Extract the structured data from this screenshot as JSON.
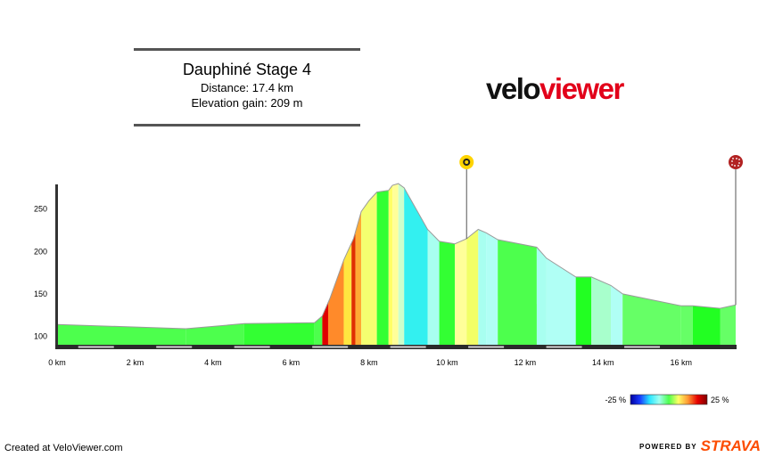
{
  "header": {
    "title": "Dauphiné Stage 4",
    "distance": "Distance: 17.4 km",
    "elevation_gain": "Elevation gain: 209 m"
  },
  "brand": {
    "part1": "velo",
    "part2": "viewer",
    "color_dark": "#111111",
    "color_red": "#e2001a"
  },
  "footer": {
    "created": "Created at VeloViewer.com",
    "powered": "POWERED BY",
    "strava": "STRAVA"
  },
  "legend": {
    "min_label": "-25 %",
    "max_label": "25 %"
  },
  "chart_data": {
    "type": "area",
    "title": "",
    "xlabel": "",
    "ylabel": "",
    "xlim": [
      0,
      17.6
    ],
    "ylim": [
      88,
      278
    ],
    "x_ticks": [
      0,
      2,
      4,
      6,
      8,
      10,
      12,
      14,
      16
    ],
    "x_tick_labels": [
      "0 km",
      "2 km",
      "4 km",
      "6 km",
      "8 km",
      "10 km",
      "12 km",
      "14 km",
      "16 km"
    ],
    "y_ticks": [
      100,
      150,
      200,
      250
    ],
    "grid": false,
    "gradient_color_scale": [
      "#0000a0",
      "#1a3cff",
      "#29e6ff",
      "#a0fff0",
      "#4dff4d",
      "#ffff66",
      "#ff9933",
      "#e60000",
      "#800000"
    ],
    "markers": [
      {
        "name": "intermediate-sprint",
        "x": 10.5,
        "color": "#ffd400"
      },
      {
        "name": "finish",
        "x": 17.4,
        "color": "#b22222"
      }
    ],
    "profile": [
      [
        0,
        114
      ],
      [
        3.3,
        109
      ],
      [
        4.8,
        115
      ],
      [
        6.6,
        116
      ],
      [
        6.8,
        124
      ],
      [
        7.0,
        145
      ],
      [
        7.35,
        190
      ],
      [
        7.6,
        215
      ],
      [
        7.8,
        247
      ],
      [
        8.0,
        260
      ],
      [
        8.2,
        270
      ],
      [
        8.5,
        272
      ],
      [
        8.6,
        278
      ],
      [
        8.75,
        280
      ],
      [
        8.9,
        275
      ],
      [
        9.5,
        226
      ],
      [
        9.8,
        212
      ],
      [
        10.2,
        209
      ],
      [
        10.5,
        215
      ],
      [
        10.8,
        226
      ],
      [
        11.0,
        222
      ],
      [
        11.3,
        214
      ],
      [
        12.3,
        205
      ],
      [
        12.55,
        192
      ],
      [
        13.3,
        170
      ],
      [
        13.7,
        170
      ],
      [
        14.2,
        160
      ],
      [
        14.5,
        150
      ],
      [
        16.0,
        136
      ],
      [
        16.3,
        136
      ],
      [
        17.0,
        133
      ],
      [
        17.4,
        137
      ]
    ],
    "segments": [
      {
        "x0": 0,
        "x1": 3.3,
        "color": "#4dff4d"
      },
      {
        "x0": 3.3,
        "x1": 4.8,
        "color": "#4dff4d"
      },
      {
        "x0": 4.8,
        "x1": 6.6,
        "color": "#33ff33"
      },
      {
        "x0": 6.6,
        "x1": 6.8,
        "color": "#4dff4d"
      },
      {
        "x0": 6.8,
        "x1": 6.95,
        "color": "#e00000"
      },
      {
        "x0": 6.95,
        "x1": 7.35,
        "color": "#ff8a2a"
      },
      {
        "x0": 7.35,
        "x1": 7.55,
        "color": "#ffe640"
      },
      {
        "x0": 7.55,
        "x1": 7.65,
        "color": "#e03000"
      },
      {
        "x0": 7.65,
        "x1": 7.8,
        "color": "#ffaa33"
      },
      {
        "x0": 7.8,
        "x1": 8.2,
        "color": "#f4ff70"
      },
      {
        "x0": 8.2,
        "x1": 8.5,
        "color": "#33ff33"
      },
      {
        "x0": 8.5,
        "x1": 8.6,
        "color": "#ffff66"
      },
      {
        "x0": 8.6,
        "x1": 8.75,
        "color": "#ffff99"
      },
      {
        "x0": 8.75,
        "x1": 8.9,
        "color": "#ccffcc"
      },
      {
        "x0": 8.9,
        "x1": 9.5,
        "color": "#33f0f0"
      },
      {
        "x0": 9.5,
        "x1": 9.8,
        "color": "#a8fff0"
      },
      {
        "x0": 9.8,
        "x1": 10.2,
        "color": "#33ff33"
      },
      {
        "x0": 10.2,
        "x1": 10.5,
        "color": "#ffff99"
      },
      {
        "x0": 10.5,
        "x1": 10.8,
        "color": "#f2ff66"
      },
      {
        "x0": 10.8,
        "x1": 11.0,
        "color": "#a8fff0"
      },
      {
        "x0": 11.0,
        "x1": 11.3,
        "color": "#b0fff5"
      },
      {
        "x0": 11.3,
        "x1": 12.3,
        "color": "#4dff4d"
      },
      {
        "x0": 12.3,
        "x1": 12.55,
        "color": "#a8fff0"
      },
      {
        "x0": 12.55,
        "x1": 13.3,
        "color": "#b0fff5"
      },
      {
        "x0": 13.3,
        "x1": 13.7,
        "color": "#22ff22"
      },
      {
        "x0": 13.7,
        "x1": 14.2,
        "color": "#a8ffcc"
      },
      {
        "x0": 14.2,
        "x1": 14.5,
        "color": "#b0fff5"
      },
      {
        "x0": 14.5,
        "x1": 16.0,
        "color": "#66ff66"
      },
      {
        "x0": 16.0,
        "x1": 16.3,
        "color": "#66ff66"
      },
      {
        "x0": 16.3,
        "x1": 17.0,
        "color": "#22ff22"
      },
      {
        "x0": 17.0,
        "x1": 17.4,
        "color": "#66ff66"
      }
    ]
  }
}
